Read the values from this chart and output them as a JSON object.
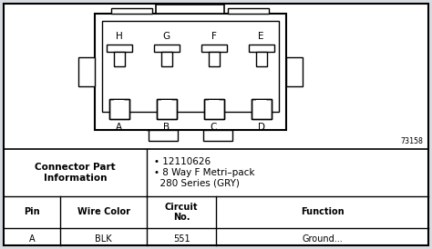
{
  "bg_color": "#d8dce0",
  "panel_bg": "#ffffff",
  "border_color": "#000000",
  "figure_number": "73158",
  "connector_label": "Connector Part\nInformation",
  "connector_info_line1": "• 12110626",
  "connector_info_line2": "• 8 Way F Metri–pack\n  280 Series (GRY)",
  "table_headers": [
    "Pin",
    "Wire Color",
    "Circuit\nNo.",
    "Function"
  ],
  "last_row": [
    "A",
    "BLK",
    "551",
    "Ground..."
  ],
  "pin_labels_top": [
    "H",
    "G",
    "F",
    "E"
  ],
  "pin_labels_bottom": [
    "A",
    "B",
    "C",
    "D"
  ]
}
